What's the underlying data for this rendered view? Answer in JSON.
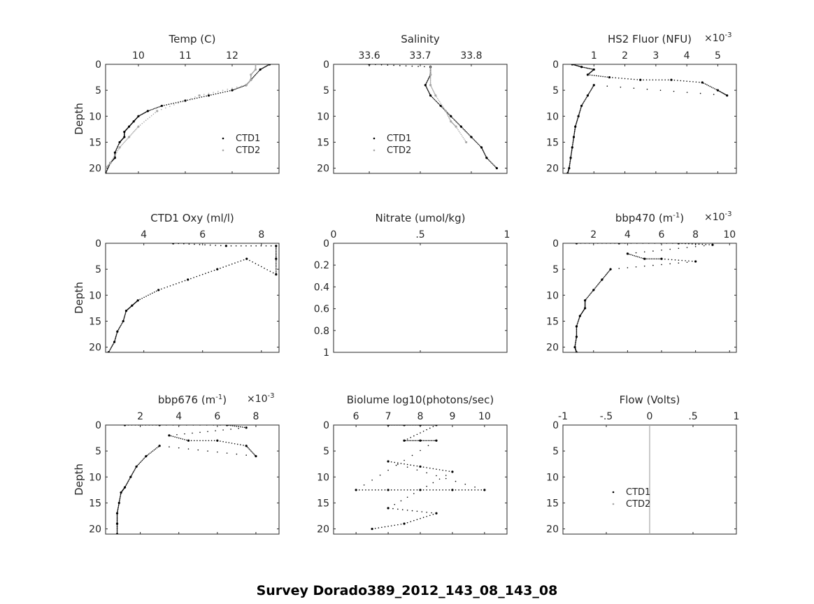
{
  "figure": {
    "suptitle": "Survey Dorado389_2012_143_08_143_08"
  },
  "colors": {
    "ctd1": "#000000",
    "ctd2": "#a6a6a6",
    "axis": "#262626"
  },
  "chart_data": [
    {
      "id": "temp",
      "type": "scatter",
      "title": "Temp (C)",
      "ylabel": "Depth",
      "xlim": [
        9.3,
        13.0
      ],
      "ylim": [
        0,
        21
      ],
      "xticks": [
        10,
        11,
        12
      ],
      "yticks": [
        0,
        5,
        10,
        15,
        20
      ],
      "legend": [
        "CTD1",
        "CTD2"
      ],
      "legend_position": "lower-right",
      "series": [
        {
          "name": "CTD1",
          "points": [
            [
              12.8,
              0
            ],
            [
              12.6,
              1
            ],
            [
              12.4,
              3
            ],
            [
              12.3,
              4
            ],
            [
              12.0,
              5
            ],
            [
              11.5,
              6
            ],
            [
              11.0,
              7
            ],
            [
              10.5,
              8
            ],
            [
              10.2,
              9
            ],
            [
              10.0,
              10
            ],
            [
              9.9,
              11
            ],
            [
              9.8,
              12
            ],
            [
              9.7,
              13
            ],
            [
              9.7,
              14
            ],
            [
              9.6,
              15
            ],
            [
              9.5,
              17
            ],
            [
              9.5,
              18
            ],
            [
              9.4,
              19
            ],
            [
              9.3,
              21
            ]
          ]
        },
        {
          "name": "CTD2",
          "points": [
            [
              12.5,
              0
            ],
            [
              12.5,
              1
            ],
            [
              12.4,
              2
            ],
            [
              12.4,
              3
            ],
            [
              12.3,
              4
            ],
            [
              11.3,
              6
            ],
            [
              10.4,
              9
            ],
            [
              10.0,
              12
            ],
            [
              9.8,
              14
            ],
            [
              9.6,
              16
            ],
            [
              9.4,
              19
            ],
            [
              9.3,
              20
            ]
          ]
        }
      ]
    },
    {
      "id": "salinity",
      "type": "scatter",
      "title": "Salinity",
      "ylabel": "",
      "xlim": [
        33.53,
        33.87
      ],
      "ylim": [
        0,
        21
      ],
      "xticks": [
        33.6,
        33.7,
        33.8
      ],
      "yticks": [
        0,
        5,
        10,
        15,
        20
      ],
      "legend": [
        "CTD1",
        "CTD2"
      ],
      "legend_position": "lower-left",
      "series": [
        {
          "name": "CTD1",
          "points": [
            [
              33.6,
              0
            ],
            [
              33.72,
              0.5
            ],
            [
              33.72,
              2
            ],
            [
              33.71,
              4
            ],
            [
              33.72,
              6
            ],
            [
              33.74,
              8
            ],
            [
              33.76,
              10
            ],
            [
              33.78,
              12
            ],
            [
              33.8,
              14
            ],
            [
              33.82,
              16
            ],
            [
              33.83,
              18
            ],
            [
              33.85,
              20
            ]
          ]
        },
        {
          "name": "CTD2",
          "points": [
            [
              33.72,
              0
            ],
            [
              33.72,
              2
            ],
            [
              33.72,
              4
            ],
            [
              33.73,
              6
            ],
            [
              33.75,
              9
            ],
            [
              33.76,
              11
            ],
            [
              33.77,
              12
            ],
            [
              33.79,
              15
            ]
          ]
        }
      ]
    },
    {
      "id": "fluor",
      "type": "scatter",
      "title": "HS2 Fluor (NFU)",
      "ylabel": "",
      "x_multiplier": "×10-3",
      "xlim": [
        0,
        5.6
      ],
      "ylim": [
        0,
        21
      ],
      "xticks": [
        1,
        2,
        3,
        4,
        5
      ],
      "yticks": [
        0,
        5,
        10,
        15,
        20
      ],
      "series": [
        {
          "name": "CTD1",
          "points": [
            [
              0.3,
              0
            ],
            [
              0.6,
              0.5
            ],
            [
              1.0,
              1
            ],
            [
              0.8,
              2
            ],
            [
              1.5,
              2.5
            ],
            [
              2.5,
              3
            ],
            [
              3.5,
              3
            ],
            [
              4.5,
              3.5
            ],
            [
              5.0,
              5
            ],
            [
              5.3,
              6
            ],
            [
              1.0,
              4
            ],
            [
              0.8,
              6
            ],
            [
              0.6,
              8
            ],
            [
              0.5,
              10
            ],
            [
              0.4,
              12
            ],
            [
              0.35,
              14
            ],
            [
              0.3,
              16
            ],
            [
              0.25,
              18
            ],
            [
              0.2,
              20
            ],
            [
              0.15,
              21
            ]
          ]
        },
        {
          "name": "CTD2",
          "points": []
        }
      ]
    },
    {
      "id": "oxy",
      "type": "scatter",
      "title": "CTD1 Oxy (ml/l)",
      "ylabel": "Depth",
      "xlim": [
        2.7,
        8.6
      ],
      "ylim": [
        0,
        21
      ],
      "xticks": [
        4,
        6,
        8
      ],
      "yticks": [
        0,
        5,
        10,
        15,
        20
      ],
      "series": [
        {
          "name": "CTD1",
          "points": [
            [
              5.0,
              0
            ],
            [
              6.8,
              0.5
            ],
            [
              8.5,
              0.5
            ],
            [
              8.5,
              3
            ],
            [
              8.5,
              6
            ],
            [
              7.5,
              3
            ],
            [
              6.5,
              5
            ],
            [
              5.5,
              7
            ],
            [
              4.5,
              9
            ],
            [
              3.8,
              11
            ],
            [
              3.6,
              12
            ],
            [
              3.4,
              13
            ],
            [
              3.3,
              15
            ],
            [
              3.1,
              17
            ],
            [
              3.0,
              19
            ],
            [
              2.8,
              21
            ]
          ]
        },
        {
          "name": "CTD2",
          "points": []
        }
      ]
    },
    {
      "id": "nitrate",
      "type": "scatter",
      "title": "Nitrate (umol/kg)",
      "ylabel": "",
      "xlim": [
        0,
        1
      ],
      "ylim": [
        0,
        1
      ],
      "xticks": [
        0,
        0.5,
        1
      ],
      "yticks": [
        0,
        0.2,
        0.4,
        0.6,
        0.8,
        1
      ],
      "series": [
        {
          "name": "CTD1",
          "points": []
        },
        {
          "name": "CTD2",
          "points": []
        }
      ]
    },
    {
      "id": "bbp470",
      "type": "scatter",
      "title": "bbp470 (m-1)",
      "ylabel": "",
      "x_multiplier": "×10-3",
      "xlim": [
        0.2,
        10.4
      ],
      "ylim": [
        0,
        21
      ],
      "xticks": [
        2,
        4,
        6,
        8,
        10
      ],
      "yticks": [
        0,
        5,
        10,
        15,
        20
      ],
      "series": [
        {
          "name": "CTD1",
          "points": [
            [
              1.0,
              0
            ],
            [
              3.5,
              0
            ],
            [
              7.0,
              0
            ],
            [
              9.0,
              0.3
            ],
            [
              4.0,
              2
            ],
            [
              5.0,
              3
            ],
            [
              6.0,
              3
            ],
            [
              8.0,
              3.5
            ],
            [
              3.0,
              5
            ],
            [
              2.5,
              7
            ],
            [
              2.0,
              9
            ],
            [
              1.5,
              11
            ],
            [
              1.5,
              12.5
            ],
            [
              1.2,
              14
            ],
            [
              1.0,
              16
            ],
            [
              1.0,
              18
            ],
            [
              0.9,
              20
            ],
            [
              1.0,
              21
            ]
          ]
        },
        {
          "name": "CTD2",
          "points": []
        }
      ]
    },
    {
      "id": "bbp676",
      "type": "scatter",
      "title": "bbp676 (m-1)",
      "ylabel": "Depth",
      "x_multiplier": "×10-3",
      "xlim": [
        0.2,
        9.2
      ],
      "ylim": [
        0,
        21
      ],
      "xticks": [
        2,
        4,
        6,
        8
      ],
      "yticks": [
        0,
        5,
        10,
        15,
        20
      ],
      "series": [
        {
          "name": "CTD1",
          "points": [
            [
              1.2,
              0
            ],
            [
              3.0,
              0
            ],
            [
              6.5,
              0
            ],
            [
              7.5,
              0.5
            ],
            [
              3.5,
              2
            ],
            [
              4.5,
              3
            ],
            [
              6.0,
              3
            ],
            [
              7.5,
              4
            ],
            [
              8.0,
              6
            ],
            [
              3.0,
              4
            ],
            [
              2.3,
              6
            ],
            [
              1.8,
              8
            ],
            [
              1.5,
              10
            ],
            [
              1.2,
              12
            ],
            [
              1.0,
              13
            ],
            [
              0.9,
              15
            ],
            [
              0.8,
              17
            ],
            [
              0.8,
              19
            ],
            [
              0.8,
              21
            ]
          ]
        },
        {
          "name": "CTD2",
          "points": []
        }
      ]
    },
    {
      "id": "biolume",
      "type": "scatter",
      "title": "Biolume log10(photons/sec)",
      "ylabel": "",
      "xlim": [
        5.3,
        10.7
      ],
      "ylim": [
        0,
        21
      ],
      "xticks": [
        6,
        7,
        8,
        9,
        10
      ],
      "yticks": [
        0,
        5,
        10,
        15,
        20
      ],
      "series": [
        {
          "name": "CTD1",
          "points": [
            [
              7.0,
              0
            ],
            [
              7.5,
              0
            ],
            [
              8.0,
              0
            ],
            [
              8.5,
              0
            ],
            [
              7.5,
              3
            ],
            [
              8.0,
              3
            ],
            [
              8.5,
              3
            ],
            [
              6.0,
              12.5
            ],
            [
              7.0,
              12.5
            ],
            [
              8.0,
              12.5
            ],
            [
              9.0,
              12.5
            ],
            [
              10.0,
              12.5
            ],
            [
              7.0,
              7
            ],
            [
              8.0,
              8
            ],
            [
              9.0,
              9
            ],
            [
              7.0,
              16
            ],
            [
              8.5,
              17
            ],
            [
              7.5,
              19
            ],
            [
              6.5,
              20
            ]
          ]
        },
        {
          "name": "CTD2",
          "points": []
        }
      ]
    },
    {
      "id": "flow",
      "type": "scatter",
      "title": "Flow (Volts)",
      "ylabel": "",
      "xlim": [
        -1,
        1
      ],
      "ylim": [
        0,
        21
      ],
      "xticks": [
        -1,
        -0.5,
        0,
        0.5,
        1
      ],
      "yticks": [
        0,
        5,
        10,
        15,
        20
      ],
      "legend": [
        "CTD1",
        "CTD2"
      ],
      "legend_position": "lower-middle",
      "series": [
        {
          "name": "CTD1",
          "points": []
        },
        {
          "name": "CTD2",
          "points": [
            [
              0,
              0
            ],
            [
              0,
              5
            ],
            [
              0,
              10
            ],
            [
              0,
              15
            ],
            [
              0,
              21
            ]
          ]
        }
      ]
    }
  ]
}
